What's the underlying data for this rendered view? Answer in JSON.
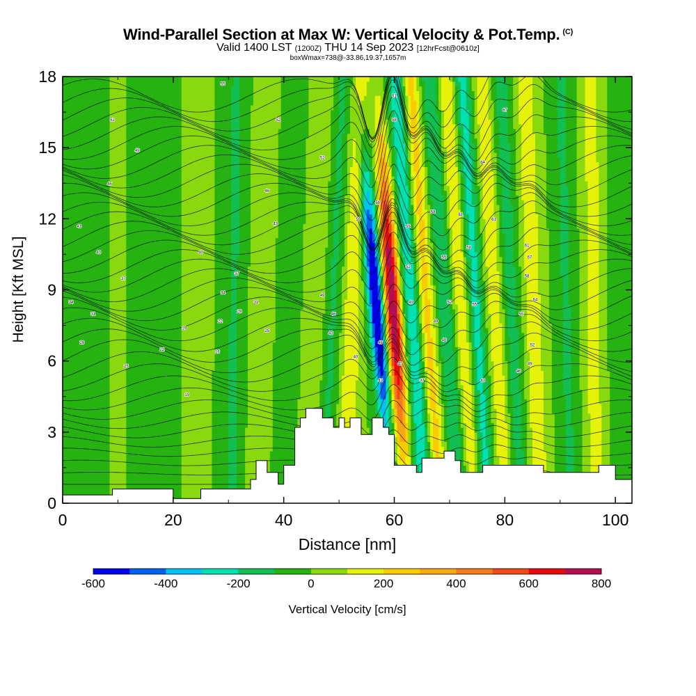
{
  "header": {
    "title": "Wind-Parallel Section at Max W: Vertical Velocity & Pot.Temp.",
    "copyright": "(C)",
    "valid_main": "Valid 1400 LST",
    "valid_utc": "(1200Z)",
    "valid_date": "THU 14 Sep 2023",
    "forecast": "[12hrFcst@0610z]",
    "box_info": "boxWmax=738@-33.86,19.37,1657m"
  },
  "chart_data": {
    "type": "heatmap",
    "xlabel": "Distance [nm]",
    "ylabel": "Height [Kft MSL]",
    "xlim": [
      0,
      103
    ],
    "ylim": [
      0,
      18
    ],
    "x_ticks": [
      "0",
      "20",
      "40",
      "60",
      "80",
      "100"
    ],
    "y_ticks": [
      "0",
      "3",
      "6",
      "9",
      "12",
      "15",
      "18"
    ],
    "colorbar": {
      "label": "Vertical Velocity [cm/s]",
      "tick_labels": [
        "-600",
        "-400",
        "-200",
        "0",
        "200",
        "400",
        "600",
        "800"
      ],
      "levels": [
        -600,
        -500,
        -400,
        -300,
        -200,
        -100,
        0,
        100,
        200,
        300,
        400,
        500,
        600,
        700,
        800
      ],
      "colors": [
        "#0000ee",
        "#0062ee",
        "#00c2f0",
        "#00e0b0",
        "#12bf52",
        "#26b312",
        "#8ad80e",
        "#e6f20a",
        "#f9cc00",
        "#f8a812",
        "#f57c18",
        "#f14818",
        "#e70b10",
        "#b20f50"
      ]
    },
    "wave_bands": [
      {
        "x": 7.5,
        "w": -30,
        "tilt": 0.0
      },
      {
        "x": 10,
        "w": 60,
        "tilt": 0.0
      },
      {
        "x": 13,
        "w": -80,
        "tilt": 0.0
      },
      {
        "x": 19,
        "w": -90,
        "tilt": 0.02
      },
      {
        "x": 24,
        "w": 50,
        "tilt": 0.0
      },
      {
        "x": 31,
        "w": -120,
        "tilt": 0.05
      },
      {
        "x": 36,
        "w": 60,
        "tilt": 0.1
      },
      {
        "x": 41,
        "w": -60,
        "tilt": 0.12
      },
      {
        "x": 46,
        "w": 100,
        "tilt": 0.15
      },
      {
        "x": 49,
        "w": -120,
        "tilt": 0.2
      },
      {
        "x": 52.5,
        "w": 200,
        "tilt": 0.15
      },
      {
        "x": 56.5,
        "w": -580,
        "tilt": -0.35
      },
      {
        "x": 59.5,
        "w": 738,
        "tilt": -0.3
      },
      {
        "x": 63,
        "w": -300,
        "tilt": -0.3
      },
      {
        "x": 65.5,
        "w": 250,
        "tilt": -0.3
      },
      {
        "x": 69,
        "w": -200,
        "tilt": -0.3
      },
      {
        "x": 72,
        "w": 200,
        "tilt": -0.3
      },
      {
        "x": 74.5,
        "w": -250,
        "tilt": -0.25
      },
      {
        "x": 78,
        "w": 180,
        "tilt": -0.25
      },
      {
        "x": 81,
        "w": -150,
        "tilt": -0.2
      },
      {
        "x": 85,
        "w": 180,
        "tilt": -0.15
      },
      {
        "x": 91,
        "w": -120,
        "tilt": -0.1
      },
      {
        "x": 96,
        "w": 150,
        "tilt": -0.05
      },
      {
        "x": 101,
        "w": -80,
        "tilt": 0.0
      }
    ],
    "terrain_kft": [
      [
        0,
        0.35
      ],
      [
        9,
        0.35
      ],
      [
        9,
        0.6
      ],
      [
        20,
        0.6
      ],
      [
        20,
        0.2
      ],
      [
        25,
        0.2
      ],
      [
        25,
        0.6
      ],
      [
        34,
        0.6
      ],
      [
        34,
        1.0
      ],
      [
        35,
        1.0
      ],
      [
        35,
        1.8
      ],
      [
        37,
        1.8
      ],
      [
        37,
        1.3
      ],
      [
        39,
        1.3
      ],
      [
        39,
        0.8
      ],
      [
        40,
        0.8
      ],
      [
        40,
        1.6
      ],
      [
        42,
        1.6
      ],
      [
        42,
        3.2
      ],
      [
        43,
        3.2
      ],
      [
        43,
        3.6
      ],
      [
        44,
        3.6
      ],
      [
        44,
        4.0
      ],
      [
        47,
        4.0
      ],
      [
        47,
        3.6
      ],
      [
        49,
        3.6
      ],
      [
        49,
        3.2
      ],
      [
        50,
        3.2
      ],
      [
        50,
        3.6
      ],
      [
        51,
        3.6
      ],
      [
        51,
        3.2
      ],
      [
        52,
        3.2
      ],
      [
        52,
        3.6
      ],
      [
        54,
        3.6
      ],
      [
        54,
        2.9
      ],
      [
        56,
        2.9
      ],
      [
        56,
        3.6
      ],
      [
        58,
        3.6
      ],
      [
        58,
        3.2
      ],
      [
        59,
        3.2
      ],
      [
        59,
        2.9
      ],
      [
        60,
        2.9
      ],
      [
        60,
        1.6
      ],
      [
        64,
        1.6
      ],
      [
        64,
        1.3
      ],
      [
        65,
        1.3
      ],
      [
        65,
        1.9
      ],
      [
        69,
        1.9
      ],
      [
        69,
        2.2
      ],
      [
        71,
        2.2
      ],
      [
        71,
        1.8
      ],
      [
        72,
        1.8
      ],
      [
        72,
        1.3
      ],
      [
        76,
        1.3
      ],
      [
        76,
        1.6
      ],
      [
        87,
        1.6
      ],
      [
        87,
        1.3
      ],
      [
        97,
        1.3
      ],
      [
        97,
        1.6
      ],
      [
        100,
        1.6
      ],
      [
        100,
        1.0
      ],
      [
        103,
        1.0
      ],
      [
        103,
        0.6
      ]
    ],
    "isentrope_labels": [
      [
        9,
        16.2,
        "52"
      ],
      [
        13.5,
        14.9,
        "49"
      ],
      [
        8.5,
        13.5,
        "46"
      ],
      [
        3,
        11.7,
        "43"
      ],
      [
        6.5,
        10.6,
        "40"
      ],
      [
        11,
        9.5,
        "37"
      ],
      [
        1.5,
        8.5,
        "34"
      ],
      [
        5.5,
        8.0,
        "31"
      ],
      [
        3.5,
        6.8,
        "28"
      ],
      [
        11.5,
        5.8,
        "25"
      ],
      [
        18,
        6.5,
        "22"
      ],
      [
        22.5,
        4.6,
        "19"
      ],
      [
        29,
        17.7,
        "55"
      ],
      [
        39,
        16.2,
        "52"
      ],
      [
        13.5,
        14.9,
        "49"
      ],
      [
        37,
        13.2,
        "46"
      ],
      [
        38.5,
        11.8,
        "43"
      ],
      [
        25,
        10.6,
        "40"
      ],
      [
        31.5,
        9.7,
        "37"
      ],
      [
        29,
        8.9,
        "34"
      ],
      [
        35,
        8.5,
        "31"
      ],
      [
        32,
        8.1,
        "28"
      ],
      [
        37,
        7.3,
        "25"
      ],
      [
        28.5,
        7.7,
        "22"
      ],
      [
        22,
        7.4,
        "19"
      ],
      [
        28,
        6.4,
        "16"
      ],
      [
        47,
        14.6,
        "52"
      ],
      [
        47,
        8.8,
        "49"
      ],
      [
        49,
        8.0,
        "46"
      ],
      [
        48.5,
        7.2,
        "43"
      ],
      [
        53,
        6.2,
        "40"
      ],
      [
        53.5,
        12.0,
        "55"
      ],
      [
        57,
        12.7,
        "58"
      ],
      [
        60,
        17.2,
        "61"
      ],
      [
        60,
        16.2,
        "58"
      ],
      [
        62.5,
        11.7,
        "55"
      ],
      [
        62.5,
        10.0,
        "52"
      ],
      [
        63,
        8.5,
        "49"
      ],
      [
        57.5,
        6.8,
        "46"
      ],
      [
        57.5,
        5.2,
        "43"
      ],
      [
        61,
        5.9,
        "40"
      ],
      [
        65,
        5.2,
        "37"
      ],
      [
        67,
        12.3,
        "58"
      ],
      [
        69,
        10.4,
        "55"
      ],
      [
        70,
        8.5,
        "52"
      ],
      [
        67.5,
        7.7,
        "49"
      ],
      [
        69,
        6.9,
        "46"
      ],
      [
        72,
        12.2,
        "61"
      ],
      [
        73.5,
        10.8,
        "58"
      ],
      [
        74.5,
        8.4,
        "55"
      ],
      [
        76,
        14.4,
        "64"
      ],
      [
        78,
        12.0,
        "61"
      ],
      [
        80,
        16.6,
        "67"
      ],
      [
        84,
        10.9,
        "61"
      ],
      [
        84,
        9.6,
        "58"
      ],
      [
        83,
        8.0,
        "55"
      ],
      [
        85,
        6.7,
        "52"
      ],
      [
        84.5,
        5.9,
        "49"
      ],
      [
        82.5,
        5.6,
        "46"
      ],
      [
        76,
        5.2,
        "43"
      ],
      [
        85.5,
        8.6,
        "64"
      ],
      [
        84.5,
        10.4,
        "67"
      ]
    ]
  }
}
